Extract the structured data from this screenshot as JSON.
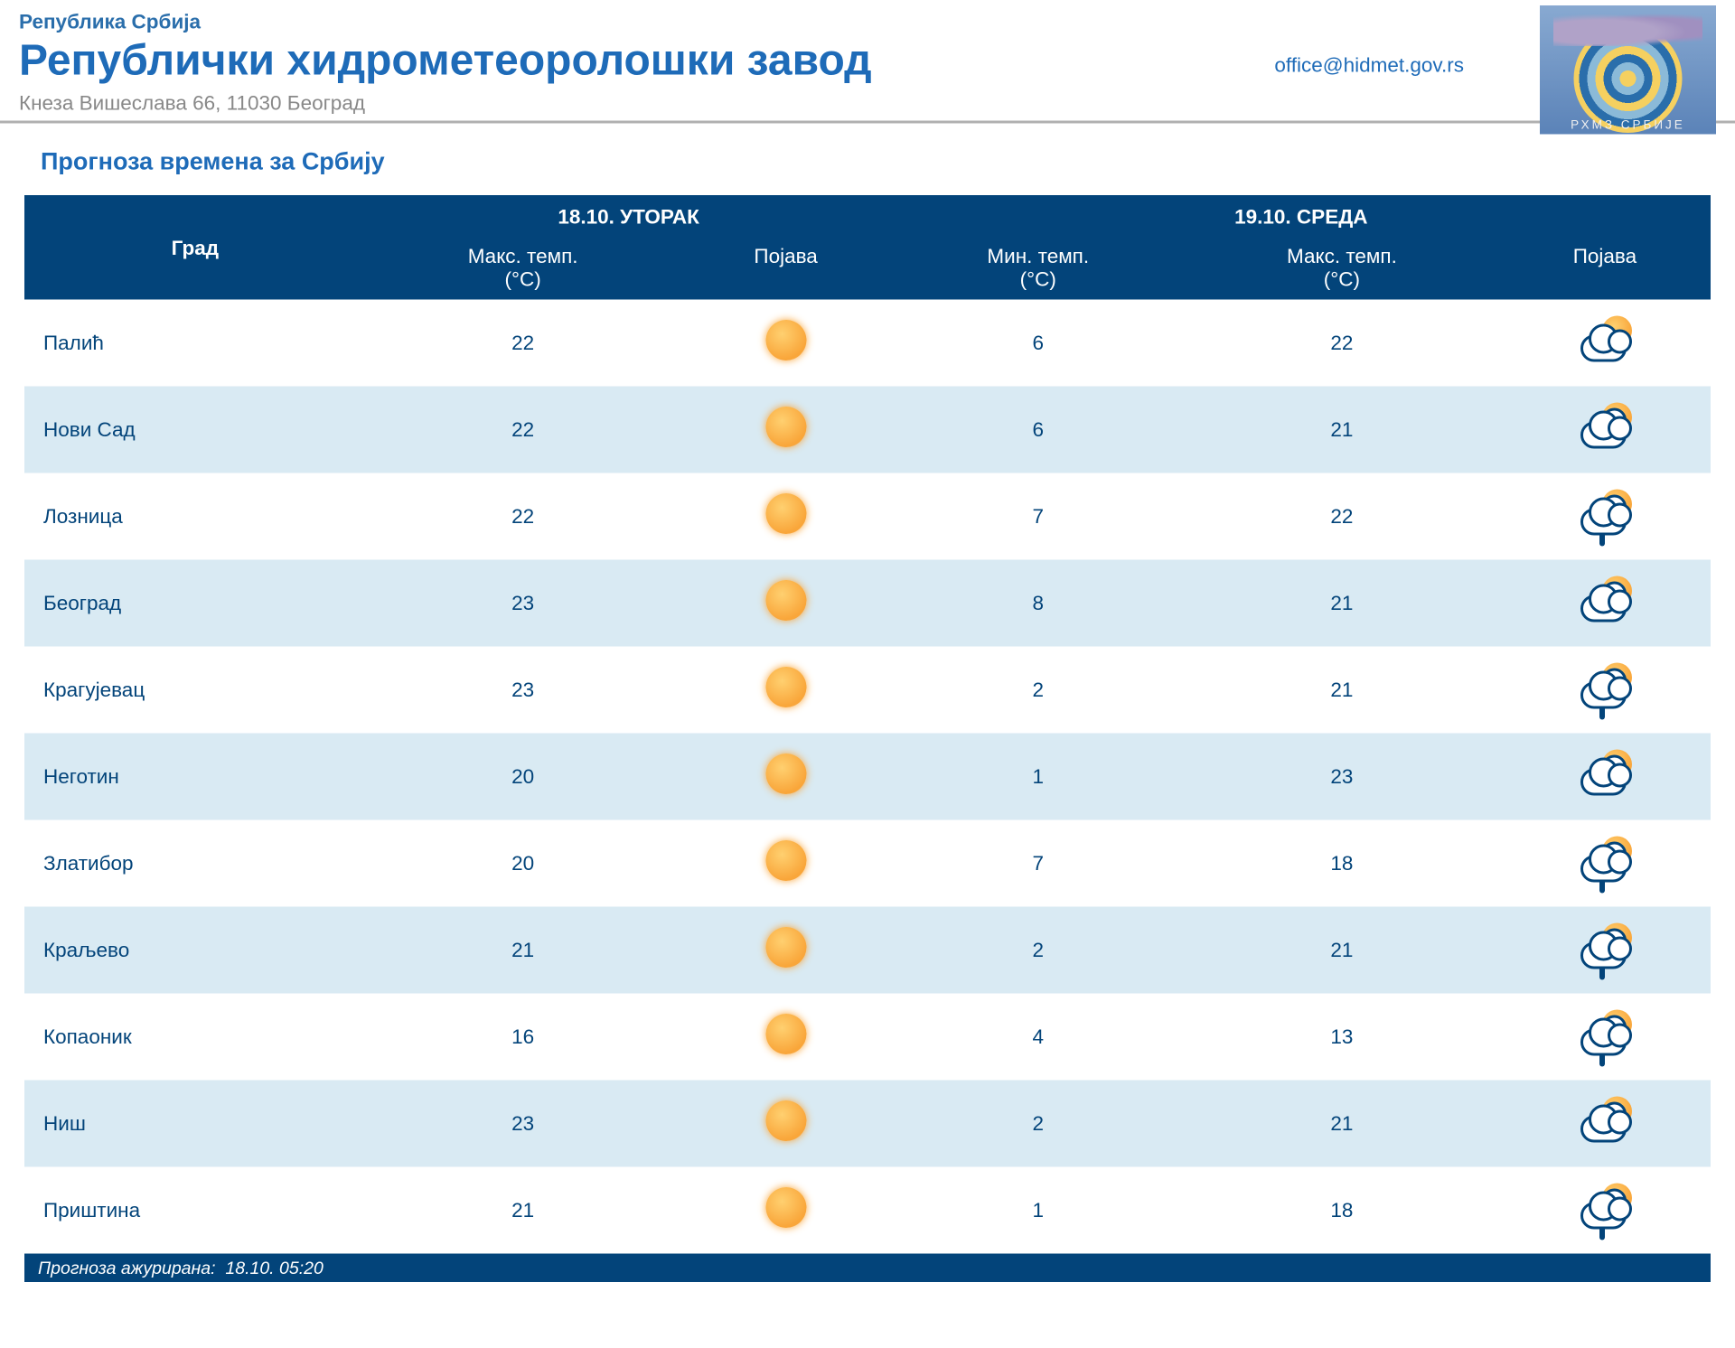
{
  "header": {
    "country": "Република Србија",
    "institute": "Републички хидрометеоролошки завод",
    "address": "Кнеза Вишеслава 66, 11030 Београд",
    "email": "office@hidmet.gov.rs",
    "logo_caption": "РХМЗ СРБИЈЕ"
  },
  "section_title": "Прогноза времена за Србију",
  "styling": {
    "header_text_color": "#1e6bb8",
    "table_header_bg": "#03447a",
    "table_header_fg": "#ffffff",
    "row_odd_bg": "#ffffff",
    "row_even_bg": "#d9eaf3",
    "cell_text_color": "#03447a",
    "font_family": "Verdana",
    "title_fontsize_pt": 14,
    "inst_fontsize_pt": 24,
    "cell_fontsize_pt": 11
  },
  "table": {
    "day1_header": "18.10. УТОРАК",
    "day2_header": "19.10. СРЕДА",
    "col_city": "Град",
    "col_max": "Макс. темп.",
    "col_min": "Мин. темп.",
    "col_unit": "(°C)",
    "col_cond": "Појава",
    "columns": [
      "city",
      "d1_max",
      "d1_icon",
      "d2_min",
      "d2_max",
      "d2_icon"
    ],
    "rows": [
      {
        "city": "Палић",
        "d1_max": "22",
        "d1_icon": "sun",
        "d2_min": "6",
        "d2_max": "22",
        "d2_icon": "suncloud"
      },
      {
        "city": "Нови Сад",
        "d1_max": "22",
        "d1_icon": "sun",
        "d2_min": "6",
        "d2_max": "21",
        "d2_icon": "sunclouds"
      },
      {
        "city": "Лозница",
        "d1_max": "22",
        "d1_icon": "sun",
        "d2_min": "7",
        "d2_max": "22",
        "d2_icon": "sunclouds_rain"
      },
      {
        "city": "Београд",
        "d1_max": "23",
        "d1_icon": "sun",
        "d2_min": "8",
        "d2_max": "21",
        "d2_icon": "sunclouds"
      },
      {
        "city": "Крагујевац",
        "d1_max": "23",
        "d1_icon": "sun",
        "d2_min": "2",
        "d2_max": "21",
        "d2_icon": "sunclouds_rain"
      },
      {
        "city": "Неготин",
        "d1_max": "20",
        "d1_icon": "sun",
        "d2_min": "1",
        "d2_max": "23",
        "d2_icon": "sunclouds"
      },
      {
        "city": "Златибор",
        "d1_max": "20",
        "d1_icon": "sun",
        "d2_min": "7",
        "d2_max": "18",
        "d2_icon": "sunclouds_rain"
      },
      {
        "city": "Краљево",
        "d1_max": "21",
        "d1_icon": "sun",
        "d2_min": "2",
        "d2_max": "21",
        "d2_icon": "sunclouds_rain"
      },
      {
        "city": "Копаоник",
        "d1_max": "16",
        "d1_icon": "sun",
        "d2_min": "4",
        "d2_max": "13",
        "d2_icon": "sunclouds_rain"
      },
      {
        "city": "Ниш",
        "d1_max": "23",
        "d1_icon": "sun",
        "d2_min": "2",
        "d2_max": "21",
        "d2_icon": "sunclouds"
      },
      {
        "city": "Приштина",
        "d1_max": "21",
        "d1_icon": "sun",
        "d2_min": "1",
        "d2_max": "18",
        "d2_icon": "sunclouds_rain"
      }
    ]
  },
  "footer": {
    "updated_label": "Прогноза ажурирана:",
    "updated_value": "18.10. 05:20"
  }
}
